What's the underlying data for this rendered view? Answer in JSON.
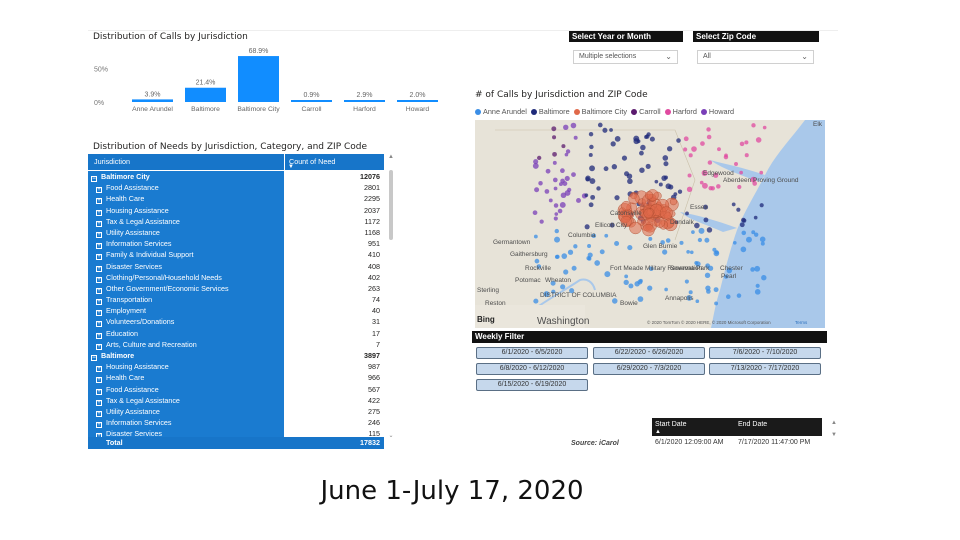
{
  "colors": {
    "bar": "#118dff",
    "table_header": "#1775c9",
    "table_row": "#1a7bd0",
    "slicer_title_bg": "#111111"
  },
  "bar_chart": {
    "title": "Distribution of Calls by Jurisdiction",
    "chart_data": {
      "type": "bar",
      "categories": [
        "Anne Arundel",
        "Baltimore",
        "Baltimore City",
        "Carroll",
        "Harford",
        "Howard"
      ],
      "values": [
        3.9,
        21.4,
        68.9,
        0.9,
        2.9,
        2.0
      ],
      "data_labels": [
        "3.9%",
        "21.4%",
        "68.9%",
        "0.9%",
        "2.9%",
        "2.0%"
      ],
      "y_ticks": [
        "50%",
        "0%"
      ],
      "ylim": [
        0,
        69
      ]
    }
  },
  "needs_table": {
    "title": "Distribution of Needs by Jurisdiction, Category, and ZIP Code",
    "columns": [
      "Jurisdiction",
      "Count of Need"
    ],
    "expander": "⊞",
    "collapser": "⊟",
    "rows": [
      {
        "label": "Baltimore City",
        "value": "12076",
        "group": true
      },
      {
        "label": "Food Assistance",
        "value": "2801"
      },
      {
        "label": "Health Care",
        "value": "2295"
      },
      {
        "label": "Housing Assistance",
        "value": "2037"
      },
      {
        "label": "Tax & Legal Assistance",
        "value": "1172"
      },
      {
        "label": "Utility Assistance",
        "value": "1168"
      },
      {
        "label": "Information Services",
        "value": "951"
      },
      {
        "label": "Family & Individual Support",
        "value": "410"
      },
      {
        "label": "Disaster Services",
        "value": "408"
      },
      {
        "label": "Clothing/Personal/Household Needs",
        "value": "402"
      },
      {
        "label": "Other Government/Economic Services",
        "value": "263"
      },
      {
        "label": "Transportation",
        "value": "74"
      },
      {
        "label": "Employment",
        "value": "40"
      },
      {
        "label": "Volunteers/Donations",
        "value": "31"
      },
      {
        "label": "Education",
        "value": "17"
      },
      {
        "label": "Arts, Culture and Recreation",
        "value": "7"
      },
      {
        "label": "Baltimore",
        "value": "3897",
        "group": true
      },
      {
        "label": "Housing Assistance",
        "value": "987"
      },
      {
        "label": "Health Care",
        "value": "966"
      },
      {
        "label": "Food Assistance",
        "value": "567"
      },
      {
        "label": "Tax & Legal Assistance",
        "value": "422"
      },
      {
        "label": "Utility Assistance",
        "value": "275"
      },
      {
        "label": "Information Services",
        "value": "246"
      },
      {
        "label": "Disaster Services",
        "value": "115"
      }
    ],
    "total_label": "Total",
    "total_value": "17832"
  },
  "slicers": {
    "year_month": {
      "title": "Select Year or Month",
      "value": "Multiple selections"
    },
    "zip": {
      "title": "Select Zip Code",
      "value": "All"
    }
  },
  "map": {
    "title": "# of Calls by Jurisdiction and ZIP Code",
    "legend": [
      {
        "name": "Anne Arundel",
        "color": "#3a8ee6"
      },
      {
        "name": "Baltimore",
        "color": "#1f2a7a"
      },
      {
        "name": "Baltimore City",
        "color": "#e0694a"
      },
      {
        "name": "Carroll",
        "color": "#5b1a6e"
      },
      {
        "name": "Harford",
        "color": "#e04aa0"
      },
      {
        "name": "Howard",
        "color": "#7a3fb8"
      }
    ],
    "place_labels": [
      "Elk",
      "Edgewood",
      "Aberdeen Proving Ground",
      "Essex",
      "Dundalk",
      "Ellicott City",
      "Columbia",
      "Catonsville",
      "Glen Burnie",
      "Germantown",
      "Gaithersburg",
      "Rockville",
      "Potomac",
      "Wheaton",
      "Fort Meade Military Reservation",
      "Severna Park",
      "Sterling",
      "Reston",
      "DISTRICT OF COLUMBIA",
      "Bowie",
      "Annapolis",
      "Chester",
      "Pearl",
      "Washington"
    ],
    "bing": "Bing",
    "attribution": "© 2020 TomTom © 2020 HERE, © 2020 Microsoft Corporation",
    "terms": "Terms"
  },
  "weekly_filter": {
    "title": "Weekly Filter",
    "options": [
      "6/1/2020 - 6/5/2020",
      "6/22/2020 - 6/26/2020",
      "7/6/2020 - 7/10/2020",
      "6/8/2020 - 6/12/2020",
      "6/29/2020 - 7/3/2020",
      "7/13/2020 - 7/17/2020",
      "6/15/2020 - 6/19/2020"
    ]
  },
  "date_range": {
    "columns": [
      "Start Date",
      "End Date"
    ],
    "start": "6/1/2020 12:09:00 AM",
    "end": "7/17/2020 11:47:00 PM"
  },
  "source": "Source: iCarol",
  "caption": "June 1-July 17, 2020"
}
